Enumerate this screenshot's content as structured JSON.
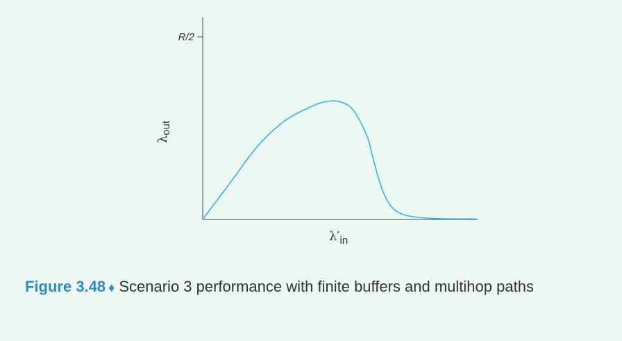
{
  "chart_data": {
    "type": "line",
    "title": "",
    "ylabel": "λ",
    "ylabel_sub": "out",
    "xlabel": "λ′",
    "xlabel_sub": "in",
    "y_ticks": [
      {
        "value": 1.0,
        "label": "R/2"
      }
    ],
    "xlim": [
      0,
      1
    ],
    "ylim": [
      0,
      1
    ],
    "grid": false,
    "series": [
      {
        "color": "#2eb5e8",
        "x": [
          0,
          0.1,
          0.2,
          0.3,
          0.4,
          0.45,
          0.5,
          0.55,
          0.6,
          0.62,
          0.64,
          0.66,
          0.68,
          0.7,
          0.72,
          0.75,
          0.8,
          0.85,
          0.9,
          1.0
        ],
        "y": [
          0,
          0.2,
          0.4,
          0.54,
          0.62,
          0.645,
          0.645,
          0.6,
          0.46,
          0.35,
          0.24,
          0.15,
          0.09,
          0.055,
          0.035,
          0.02,
          0.01,
          0.005,
          0.003,
          0.003
        ]
      }
    ]
  },
  "caption": {
    "label": "Figure 3.48",
    "symbol": "♦",
    "text": "Scenario 3 performance with finite buffers and multihop paths"
  }
}
